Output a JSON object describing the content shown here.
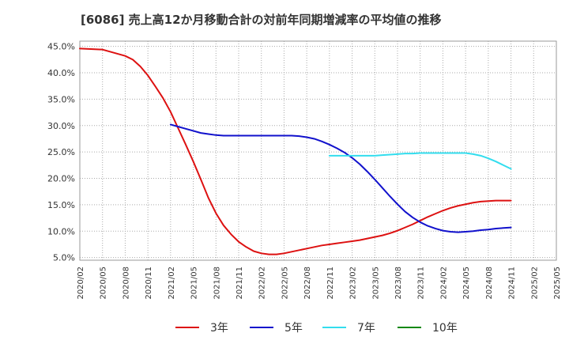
{
  "chart_data": {
    "type": "line",
    "title": "[6086]  売上高12か月移動合計の対前年同期増減率の平均値の推移",
    "xlabel": "",
    "ylabel": "",
    "ylim": [
      4.5,
      46.0
    ],
    "yticks": [
      5.0,
      10.0,
      15.0,
      20.0,
      25.0,
      30.0,
      35.0,
      40.0,
      45.0
    ],
    "ytick_labels": [
      "5.0%",
      "10.0%",
      "15.0%",
      "20.0%",
      "25.0%",
      "30.0%",
      "35.0%",
      "40.0%",
      "45.0%"
    ],
    "xtick_labels": [
      "2020/02",
      "2020/05",
      "2020/08",
      "2020/11",
      "2021/02",
      "2021/05",
      "2021/08",
      "2021/11",
      "2022/02",
      "2022/05",
      "2022/08",
      "2022/11",
      "2023/02",
      "2023/05",
      "2023/08",
      "2023/11",
      "2024/02",
      "2024/05",
      "2024/08",
      "2024/11",
      "2025/02",
      "2025/05"
    ],
    "grid": true,
    "legend_position": "bottom",
    "series": [
      {
        "name": "3年",
        "color": "#dd1111",
        "points": [
          [
            0,
            44.6
          ],
          [
            3,
            44.4
          ],
          [
            6,
            43.2
          ],
          [
            7,
            42.5
          ],
          [
            8,
            41.2
          ],
          [
            9,
            39.5
          ],
          [
            10,
            37.4
          ],
          [
            11,
            35.2
          ],
          [
            12,
            32.6
          ],
          [
            13,
            29.5
          ],
          [
            14,
            26.4
          ],
          [
            15,
            23.2
          ],
          [
            16,
            19.8
          ],
          [
            17,
            16.3
          ],
          [
            18,
            13.4
          ],
          [
            19,
            11.1
          ],
          [
            20,
            9.4
          ],
          [
            21,
            8.0
          ],
          [
            22,
            7.0
          ],
          [
            23,
            6.2
          ],
          [
            24,
            5.8
          ],
          [
            25,
            5.6
          ],
          [
            26,
            5.6
          ],
          [
            27,
            5.8
          ],
          [
            28,
            6.1
          ],
          [
            29,
            6.4
          ],
          [
            30,
            6.7
          ],
          [
            31,
            7.0
          ],
          [
            32,
            7.3
          ],
          [
            33,
            7.5
          ],
          [
            34,
            7.7
          ],
          [
            35,
            7.9
          ],
          [
            36,
            8.1
          ],
          [
            37,
            8.3
          ],
          [
            38,
            8.6
          ],
          [
            39,
            8.9
          ],
          [
            40,
            9.2
          ],
          [
            41,
            9.6
          ],
          [
            42,
            10.1
          ],
          [
            43,
            10.7
          ],
          [
            44,
            11.3
          ],
          [
            45,
            12.0
          ],
          [
            46,
            12.7
          ],
          [
            47,
            13.3
          ],
          [
            48,
            13.9
          ],
          [
            49,
            14.4
          ],
          [
            50,
            14.8
          ],
          [
            51,
            15.1
          ],
          [
            52,
            15.4
          ],
          [
            53,
            15.6
          ],
          [
            54,
            15.7
          ],
          [
            55,
            15.8
          ],
          [
            56,
            15.8
          ],
          [
            57,
            15.8
          ]
        ]
      },
      {
        "name": "5年",
        "color": "#1111cc",
        "points": [
          [
            12,
            30.2
          ],
          [
            13,
            29.8
          ],
          [
            14,
            29.4
          ],
          [
            15,
            29.0
          ],
          [
            16,
            28.6
          ],
          [
            17,
            28.4
          ],
          [
            18,
            28.2
          ],
          [
            19,
            28.1
          ],
          [
            20,
            28.1
          ],
          [
            21,
            28.1
          ],
          [
            22,
            28.1
          ],
          [
            23,
            28.1
          ],
          [
            24,
            28.1
          ],
          [
            25,
            28.1
          ],
          [
            26,
            28.1
          ],
          [
            27,
            28.1
          ],
          [
            28,
            28.1
          ],
          [
            29,
            28.0
          ],
          [
            30,
            27.8
          ],
          [
            31,
            27.5
          ],
          [
            32,
            27.0
          ],
          [
            33,
            26.4
          ],
          [
            34,
            25.7
          ],
          [
            35,
            24.9
          ],
          [
            36,
            23.9
          ],
          [
            37,
            22.7
          ],
          [
            38,
            21.3
          ],
          [
            39,
            19.8
          ],
          [
            40,
            18.2
          ],
          [
            41,
            16.6
          ],
          [
            42,
            15.1
          ],
          [
            43,
            13.7
          ],
          [
            44,
            12.6
          ],
          [
            45,
            11.7
          ],
          [
            46,
            11.0
          ],
          [
            47,
            10.5
          ],
          [
            48,
            10.1
          ],
          [
            49,
            9.9
          ],
          [
            50,
            9.8
          ],
          [
            51,
            9.9
          ],
          [
            52,
            10.0
          ],
          [
            53,
            10.2
          ],
          [
            54,
            10.3
          ],
          [
            55,
            10.5
          ],
          [
            56,
            10.6
          ],
          [
            57,
            10.7
          ]
        ]
      },
      {
        "name": "7年",
        "color": "#33ddee",
        "points": [
          [
            33,
            24.3
          ],
          [
            34,
            24.3
          ],
          [
            35,
            24.3
          ],
          [
            36,
            24.3
          ],
          [
            37,
            24.3
          ],
          [
            38,
            24.3
          ],
          [
            39,
            24.3
          ],
          [
            40,
            24.4
          ],
          [
            41,
            24.5
          ],
          [
            42,
            24.6
          ],
          [
            43,
            24.7
          ],
          [
            44,
            24.7
          ],
          [
            45,
            24.8
          ],
          [
            46,
            24.8
          ],
          [
            47,
            24.8
          ],
          [
            48,
            24.8
          ],
          [
            49,
            24.8
          ],
          [
            50,
            24.8
          ],
          [
            51,
            24.8
          ],
          [
            52,
            24.6
          ],
          [
            53,
            24.3
          ],
          [
            54,
            23.8
          ],
          [
            55,
            23.2
          ],
          [
            56,
            22.5
          ],
          [
            57,
            21.8
          ]
        ]
      },
      {
        "name": "10年",
        "color": "#118811",
        "points": []
      }
    ]
  }
}
